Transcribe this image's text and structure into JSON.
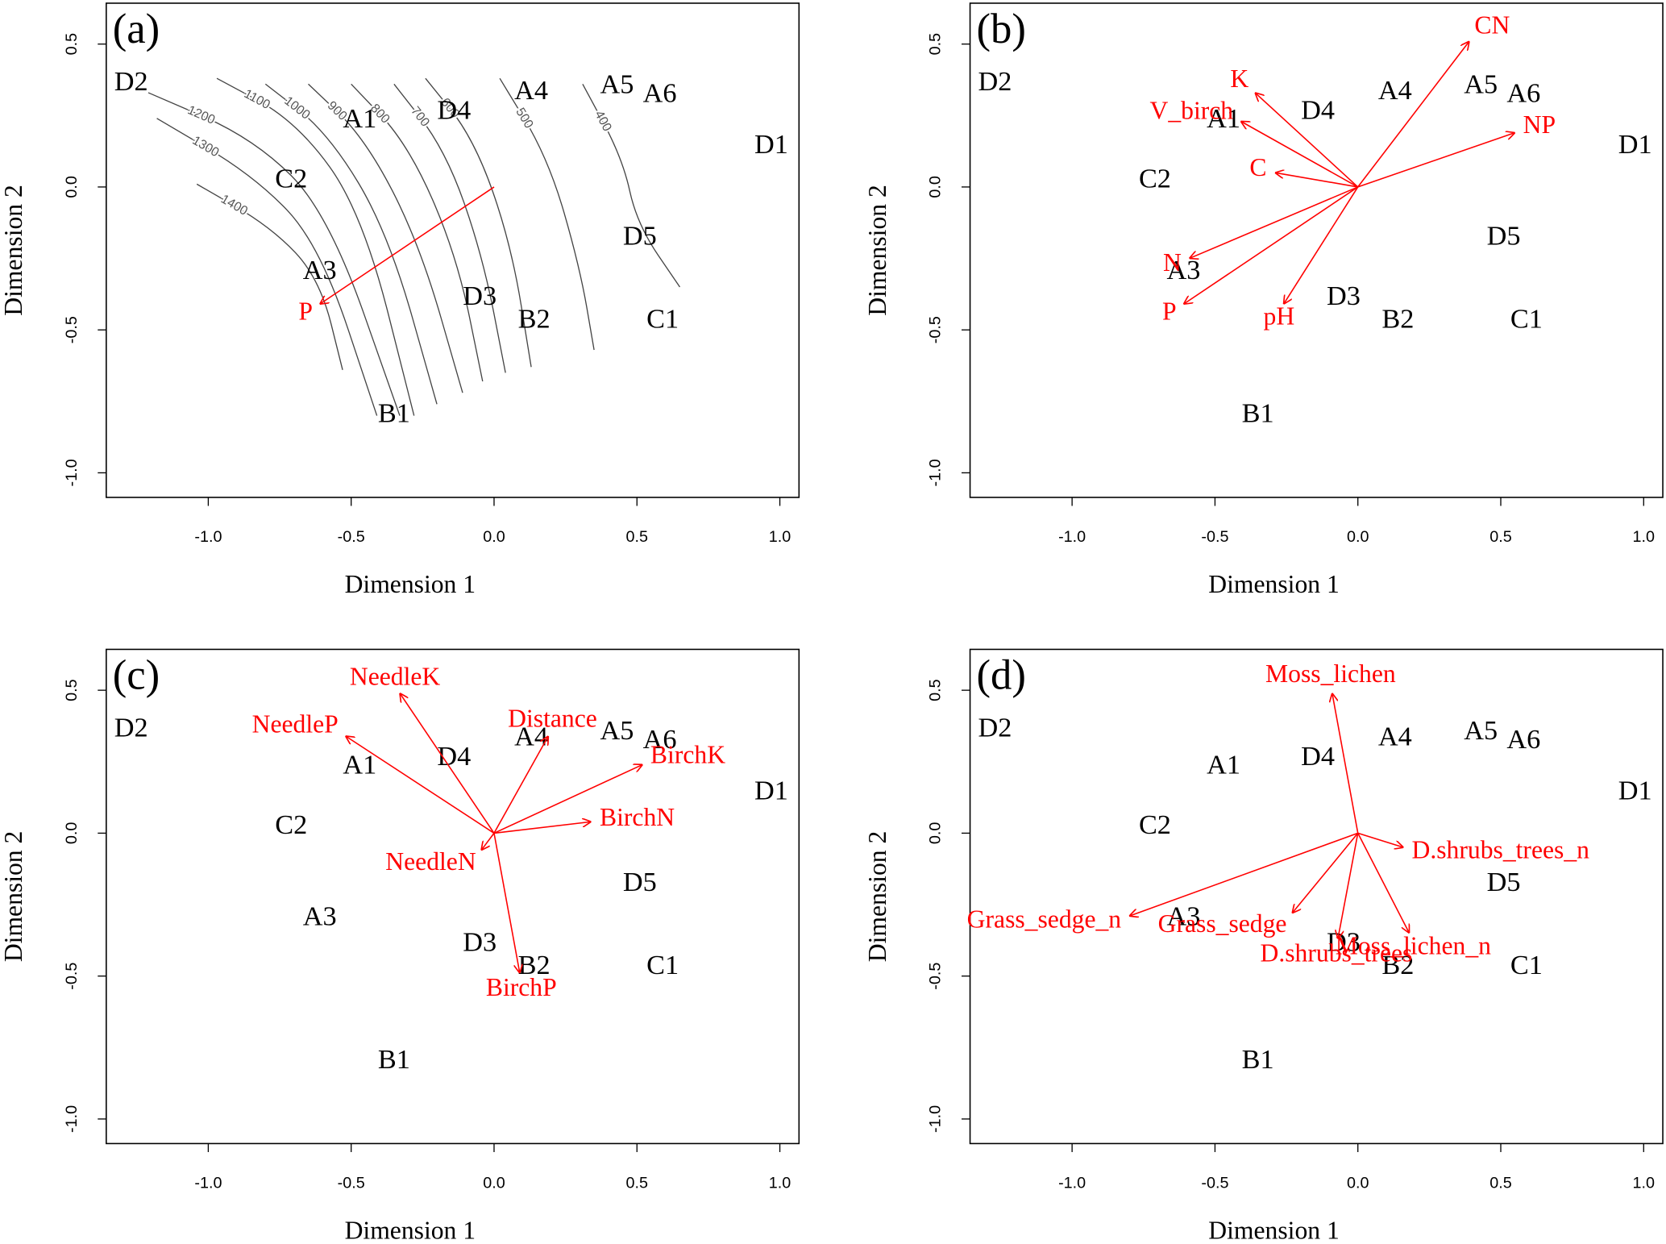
{
  "chart_data": [
    {
      "type": "scatter",
      "panel_label": "(a)",
      "xlabel": "Dimension 1",
      "ylabel": "Dimension 2",
      "xlim": [
        -1.357,
        1.067
      ],
      "ylim": [
        -1.086,
        0.643
      ],
      "xticks": [
        {
          "value": -1,
          "label": "-1.0"
        },
        -0.5,
        {
          "value": 0,
          "label": "0.0"
        },
        0.5,
        {
          "value": 1,
          "label": "1.0"
        }
      ],
      "yticks": [
        {
          "value": -1,
          "label": "-1.0"
        },
        -0.5,
        {
          "value": 0,
          "label": "0.0"
        },
        0.5
      ],
      "points": {
        "color": "#000000",
        "labels": [
          "D2",
          "A1",
          "D4",
          "A4",
          "A5",
          "A6",
          "D1",
          "C2",
          "D5",
          "A3",
          "D3",
          "B2",
          "C1",
          "B1"
        ],
        "x": [
          -1.27,
          -0.47,
          -0.14,
          0.13,
          0.43,
          0.58,
          0.97,
          -0.71,
          0.51,
          -0.61,
          -0.05,
          0.14,
          0.59,
          -0.35
        ],
        "y": [
          0.36,
          0.23,
          0.26,
          0.33,
          0.35,
          0.32,
          0.14,
          0.02,
          -0.18,
          -0.3,
          -0.39,
          -0.47,
          -0.47,
          -0.8
        ]
      },
      "vectors": {
        "color": "#ff0000",
        "names": [
          "P"
        ],
        "x": [
          -0.61
        ],
        "y": [
          -0.41
        ]
      },
      "contours": [
        {
          "level": 1400,
          "x": [
            -1.04,
            -0.78,
            -0.61,
            -0.53
          ],
          "y": [
            0.01,
            -0.14,
            -0.32,
            -0.64
          ]
        },
        {
          "level": 1300,
          "x": [
            -1.18,
            -0.84,
            -0.61,
            -0.41
          ],
          "y": [
            0.24,
            0.04,
            -0.2,
            -0.8
          ]
        },
        {
          "level": 1200,
          "x": [
            -1.21,
            -0.84,
            -0.58,
            -0.33
          ],
          "y": [
            0.33,
            0.17,
            -0.09,
            -0.8
          ]
        },
        {
          "level": 1100,
          "x": [
            -0.97,
            -0.69,
            -0.46,
            -0.28
          ],
          "y": [
            0.38,
            0.23,
            -0.09,
            -0.8
          ]
        },
        {
          "level": 1000,
          "x": [
            -0.8,
            -0.58,
            -0.37,
            -0.2
          ],
          "y": [
            0.36,
            0.19,
            -0.16,
            -0.76
          ]
        },
        {
          "level": 900,
          "x": [
            -0.65,
            -0.45,
            -0.26,
            -0.11
          ],
          "y": [
            0.36,
            0.17,
            -0.2,
            -0.72
          ]
        },
        {
          "level": 800,
          "x": [
            -0.5,
            -0.3,
            -0.13,
            -0.04
          ],
          "y": [
            0.36,
            0.15,
            -0.24,
            -0.68
          ]
        },
        {
          "level": 700,
          "x": [
            -0.35,
            -0.17,
            -0.04,
            0.04
          ],
          "y": [
            0.36,
            0.13,
            -0.24,
            -0.65
          ]
        },
        {
          "level": 600,
          "x": [
            -0.24,
            -0.07,
            0.06,
            0.13
          ],
          "y": [
            0.38,
            0.17,
            -0.2,
            -0.63
          ]
        },
        {
          "level": 500,
          "x": [
            0.02,
            0.19,
            0.3,
            0.35
          ],
          "y": [
            0.38,
            0.1,
            -0.28,
            -0.57
          ]
        },
        {
          "level": 400,
          "x": [
            0.31,
            0.45,
            0.5,
            0.65
          ],
          "y": [
            0.36,
            0.1,
            -0.13,
            -0.35
          ]
        }
      ]
    },
    {
      "type": "scatter",
      "panel_label": "(b)",
      "xlabel": "Dimension 1",
      "ylabel": "Dimension 2",
      "xlim": [
        -1.357,
        1.067
      ],
      "ylim": [
        -1.086,
        0.643
      ],
      "xticks": [
        {
          "value": -1,
          "label": "-1.0"
        },
        -0.5,
        {
          "value": 0,
          "label": "0.0"
        },
        0.5,
        {
          "value": 1,
          "label": "1.0"
        }
      ],
      "yticks": [
        {
          "value": -1,
          "label": "-1.0"
        },
        -0.5,
        {
          "value": 0,
          "label": "0.0"
        },
        0.5
      ],
      "points": {
        "color": "#000000",
        "labels": [
          "D2",
          "A1",
          "D4",
          "A4",
          "A5",
          "A6",
          "D1",
          "C2",
          "D5",
          "A3",
          "D3",
          "B2",
          "C1",
          "B1"
        ],
        "x": [
          -1.27,
          -0.47,
          -0.14,
          0.13,
          0.43,
          0.58,
          0.97,
          -0.71,
          0.51,
          -0.61,
          -0.05,
          0.14,
          0.59,
          -0.35
        ],
        "y": [
          0.36,
          0.23,
          0.26,
          0.33,
          0.35,
          0.32,
          0.14,
          0.02,
          -0.18,
          -0.3,
          -0.39,
          -0.47,
          -0.47,
          -0.8
        ]
      },
      "vectors": {
        "color": "#ff0000",
        "names": [
          "CN",
          "NP",
          "K",
          "V_birch",
          "C",
          "N",
          "P",
          "pH"
        ],
        "x": [
          0.39,
          0.55,
          -0.36,
          -0.41,
          -0.29,
          -0.59,
          -0.61,
          -0.26
        ],
        "y": [
          0.51,
          0.19,
          0.33,
          0.23,
          0.05,
          -0.25,
          -0.41,
          -0.41
        ]
      }
    },
    {
      "type": "scatter",
      "panel_label": "(c)",
      "xlabel": "Dimension 1",
      "ylabel": "Dimension 2",
      "xlim": [
        -1.357,
        1.067
      ],
      "ylim": [
        -1.086,
        0.643
      ],
      "xticks": [
        {
          "value": -1,
          "label": "-1.0"
        },
        -0.5,
        {
          "value": 0,
          "label": "0.0"
        },
        0.5,
        {
          "value": 1,
          "label": "1.0"
        }
      ],
      "yticks": [
        {
          "value": -1,
          "label": "-1.0"
        },
        -0.5,
        {
          "value": 0,
          "label": "0.0"
        },
        0.5
      ],
      "points": {
        "color": "#000000",
        "labels": [
          "D2",
          "A1",
          "D4",
          "A4",
          "A5",
          "A6",
          "D1",
          "C2",
          "D5",
          "A3",
          "D3",
          "B2",
          "C1",
          "B1"
        ],
        "x": [
          -1.27,
          -0.47,
          -0.14,
          0.13,
          0.43,
          0.58,
          0.97,
          -0.71,
          0.51,
          -0.61,
          -0.05,
          0.14,
          0.59,
          -0.35
        ],
        "y": [
          0.36,
          0.23,
          0.26,
          0.33,
          0.35,
          0.32,
          0.14,
          0.02,
          -0.18,
          -0.3,
          -0.39,
          -0.47,
          -0.47,
          -0.8
        ]
      },
      "vectors": {
        "color": "#ff0000",
        "names": [
          "NeedleK",
          "NeedleP",
          "Distance",
          "BirchK",
          "BirchN",
          "NeedleN",
          "BirchP"
        ],
        "x": [
          -0.33,
          -0.52,
          0.19,
          0.52,
          0.34,
          -0.045,
          0.09
        ],
        "y": [
          0.49,
          0.34,
          0.34,
          0.24,
          0.04,
          -0.06,
          -0.49
        ]
      }
    },
    {
      "type": "scatter",
      "panel_label": "(d)",
      "xlabel": "Dimension 1",
      "ylabel": "Dimension 2",
      "xlim": [
        -1.357,
        1.067
      ],
      "ylim": [
        -1.086,
        0.643
      ],
      "xticks": [
        {
          "value": -1,
          "label": "-1.0"
        },
        -0.5,
        {
          "value": 0,
          "label": "0.0"
        },
        0.5,
        {
          "value": 1,
          "label": "1.0"
        }
      ],
      "yticks": [
        {
          "value": -1,
          "label": "-1.0"
        },
        -0.5,
        {
          "value": 0,
          "label": "0.0"
        },
        0.5
      ],
      "points": {
        "color": "#000000",
        "labels": [
          "D2",
          "A1",
          "D4",
          "A4",
          "A5",
          "A6",
          "D1",
          "C2",
          "D5",
          "A3",
          "D3",
          "B2",
          "C1",
          "B1"
        ],
        "x": [
          -1.27,
          -0.47,
          -0.14,
          0.13,
          0.43,
          0.58,
          0.97,
          -0.71,
          0.51,
          -0.61,
          -0.05,
          0.14,
          0.59,
          -0.35
        ],
        "y": [
          0.36,
          0.23,
          0.26,
          0.33,
          0.35,
          0.32,
          0.14,
          0.02,
          -0.18,
          -0.3,
          -0.39,
          -0.47,
          -0.47,
          -0.8
        ]
      },
      "vectors": {
        "color": "#ff0000",
        "names": [
          "Moss_lichen",
          "D.shrubs_trees_n",
          "Grass_sedge_n",
          "Grass_sedge",
          "D.shrubs_trees",
          "Moss_lichen_n"
        ],
        "x": [
          -0.09,
          0.16,
          -0.8,
          -0.23,
          -0.07,
          0.18
        ],
        "y": [
          0.49,
          -0.05,
          -0.29,
          -0.28,
          -0.37,
          -0.35
        ]
      }
    }
  ]
}
